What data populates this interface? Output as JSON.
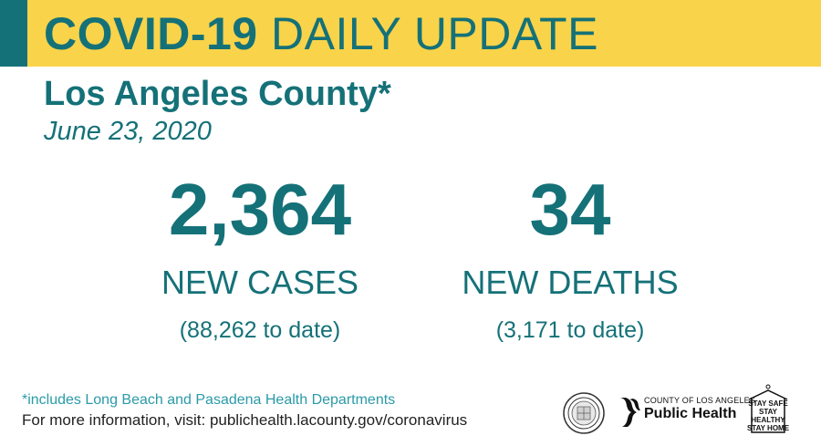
{
  "banner": {
    "title_bold": "COVID-19",
    "title_light": "DAILY UPDATE"
  },
  "location": "Los Angeles County*",
  "date": "June 23, 2020",
  "cases": {
    "count": "2,364",
    "label": "NEW CASES",
    "to_date": "(88,262 to date)"
  },
  "deaths": {
    "count": "34",
    "label": "NEW DEATHS",
    "to_date": "(3,171 to date)"
  },
  "footnote": "*includes Long Beach and Pasadena Health Departments",
  "more_info": "For more information, visit: publichealth.lacounty.gov/coronavirus",
  "logos": {
    "public_health_county": "COUNTY OF LOS ANGELES",
    "public_health_name": "Public Health",
    "stay_safe_lines": [
      "STAY SAFE",
      "STAY HEALTHY",
      "STAY HOME"
    ]
  },
  "colors": {
    "brand_teal": "#157178",
    "banner_yellow": "#f9d34a",
    "footnote_teal": "#2a9aa8"
  }
}
